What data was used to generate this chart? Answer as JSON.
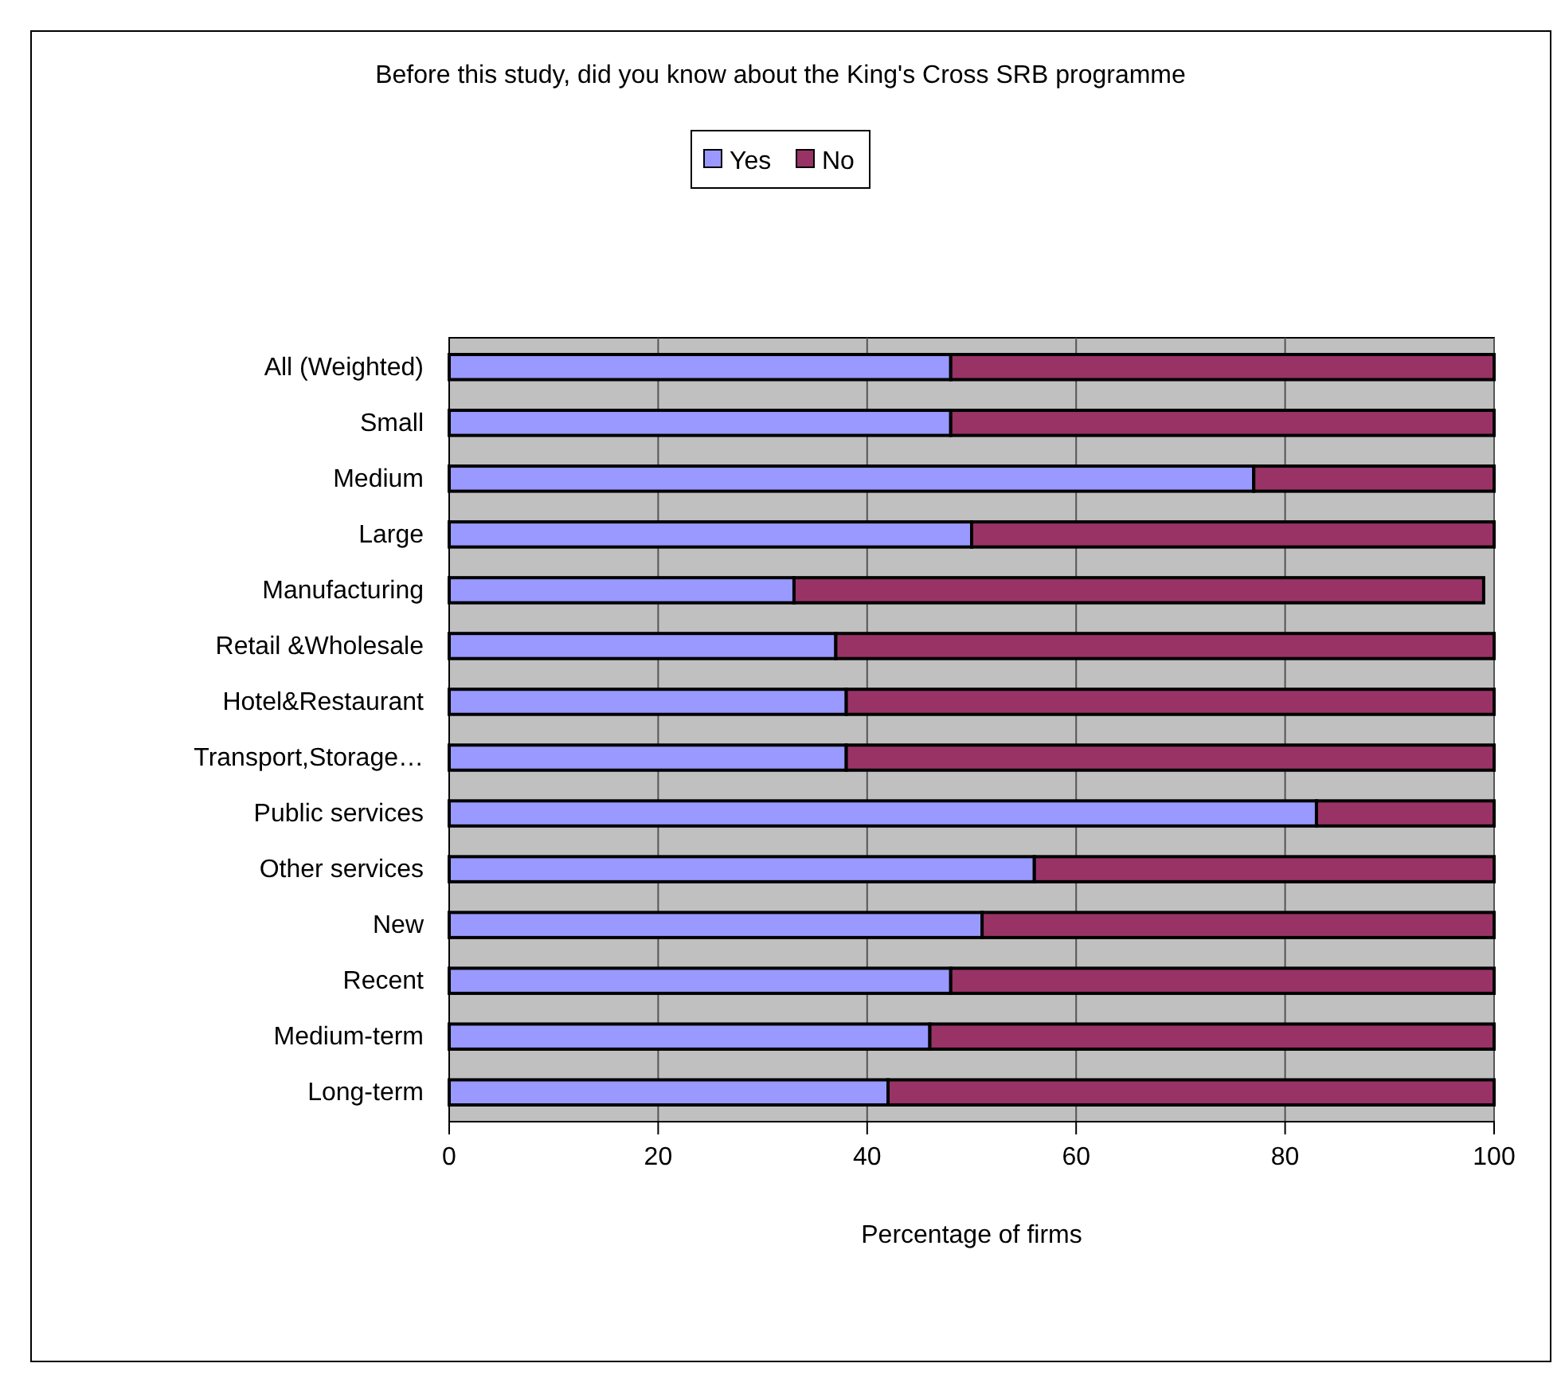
{
  "chart_data": {
    "type": "bar",
    "orientation": "horizontal",
    "stacked": true,
    "title": "Before this study, did you know about the King's Cross SRB programme",
    "xlabel": "Percentage of firms",
    "categories": [
      "All (Weighted)",
      "Small",
      "Medium",
      "Large",
      "Manufacturing",
      "Retail &Wholesale",
      "Hotel&Restaurant",
      "Transport,Storage…",
      "Public services",
      "Other services",
      "New",
      "Recent",
      "Medium-term",
      "Long-term"
    ],
    "series": [
      {
        "name": "Yes",
        "color": "#9999ff",
        "values": [
          48,
          48,
          77,
          50,
          33,
          37,
          38,
          38,
          83,
          56,
          51,
          48,
          46,
          42
        ]
      },
      {
        "name": "No",
        "color": "#993366",
        "values": [
          52,
          52,
          23,
          50,
          66,
          63,
          62,
          62,
          17,
          44,
          49,
          52,
          54,
          58
        ]
      }
    ],
    "xlim": [
      0,
      100
    ],
    "xticks": [
      0,
      20,
      40,
      60,
      80,
      100
    ],
    "grid": "x",
    "legend": "top"
  }
}
